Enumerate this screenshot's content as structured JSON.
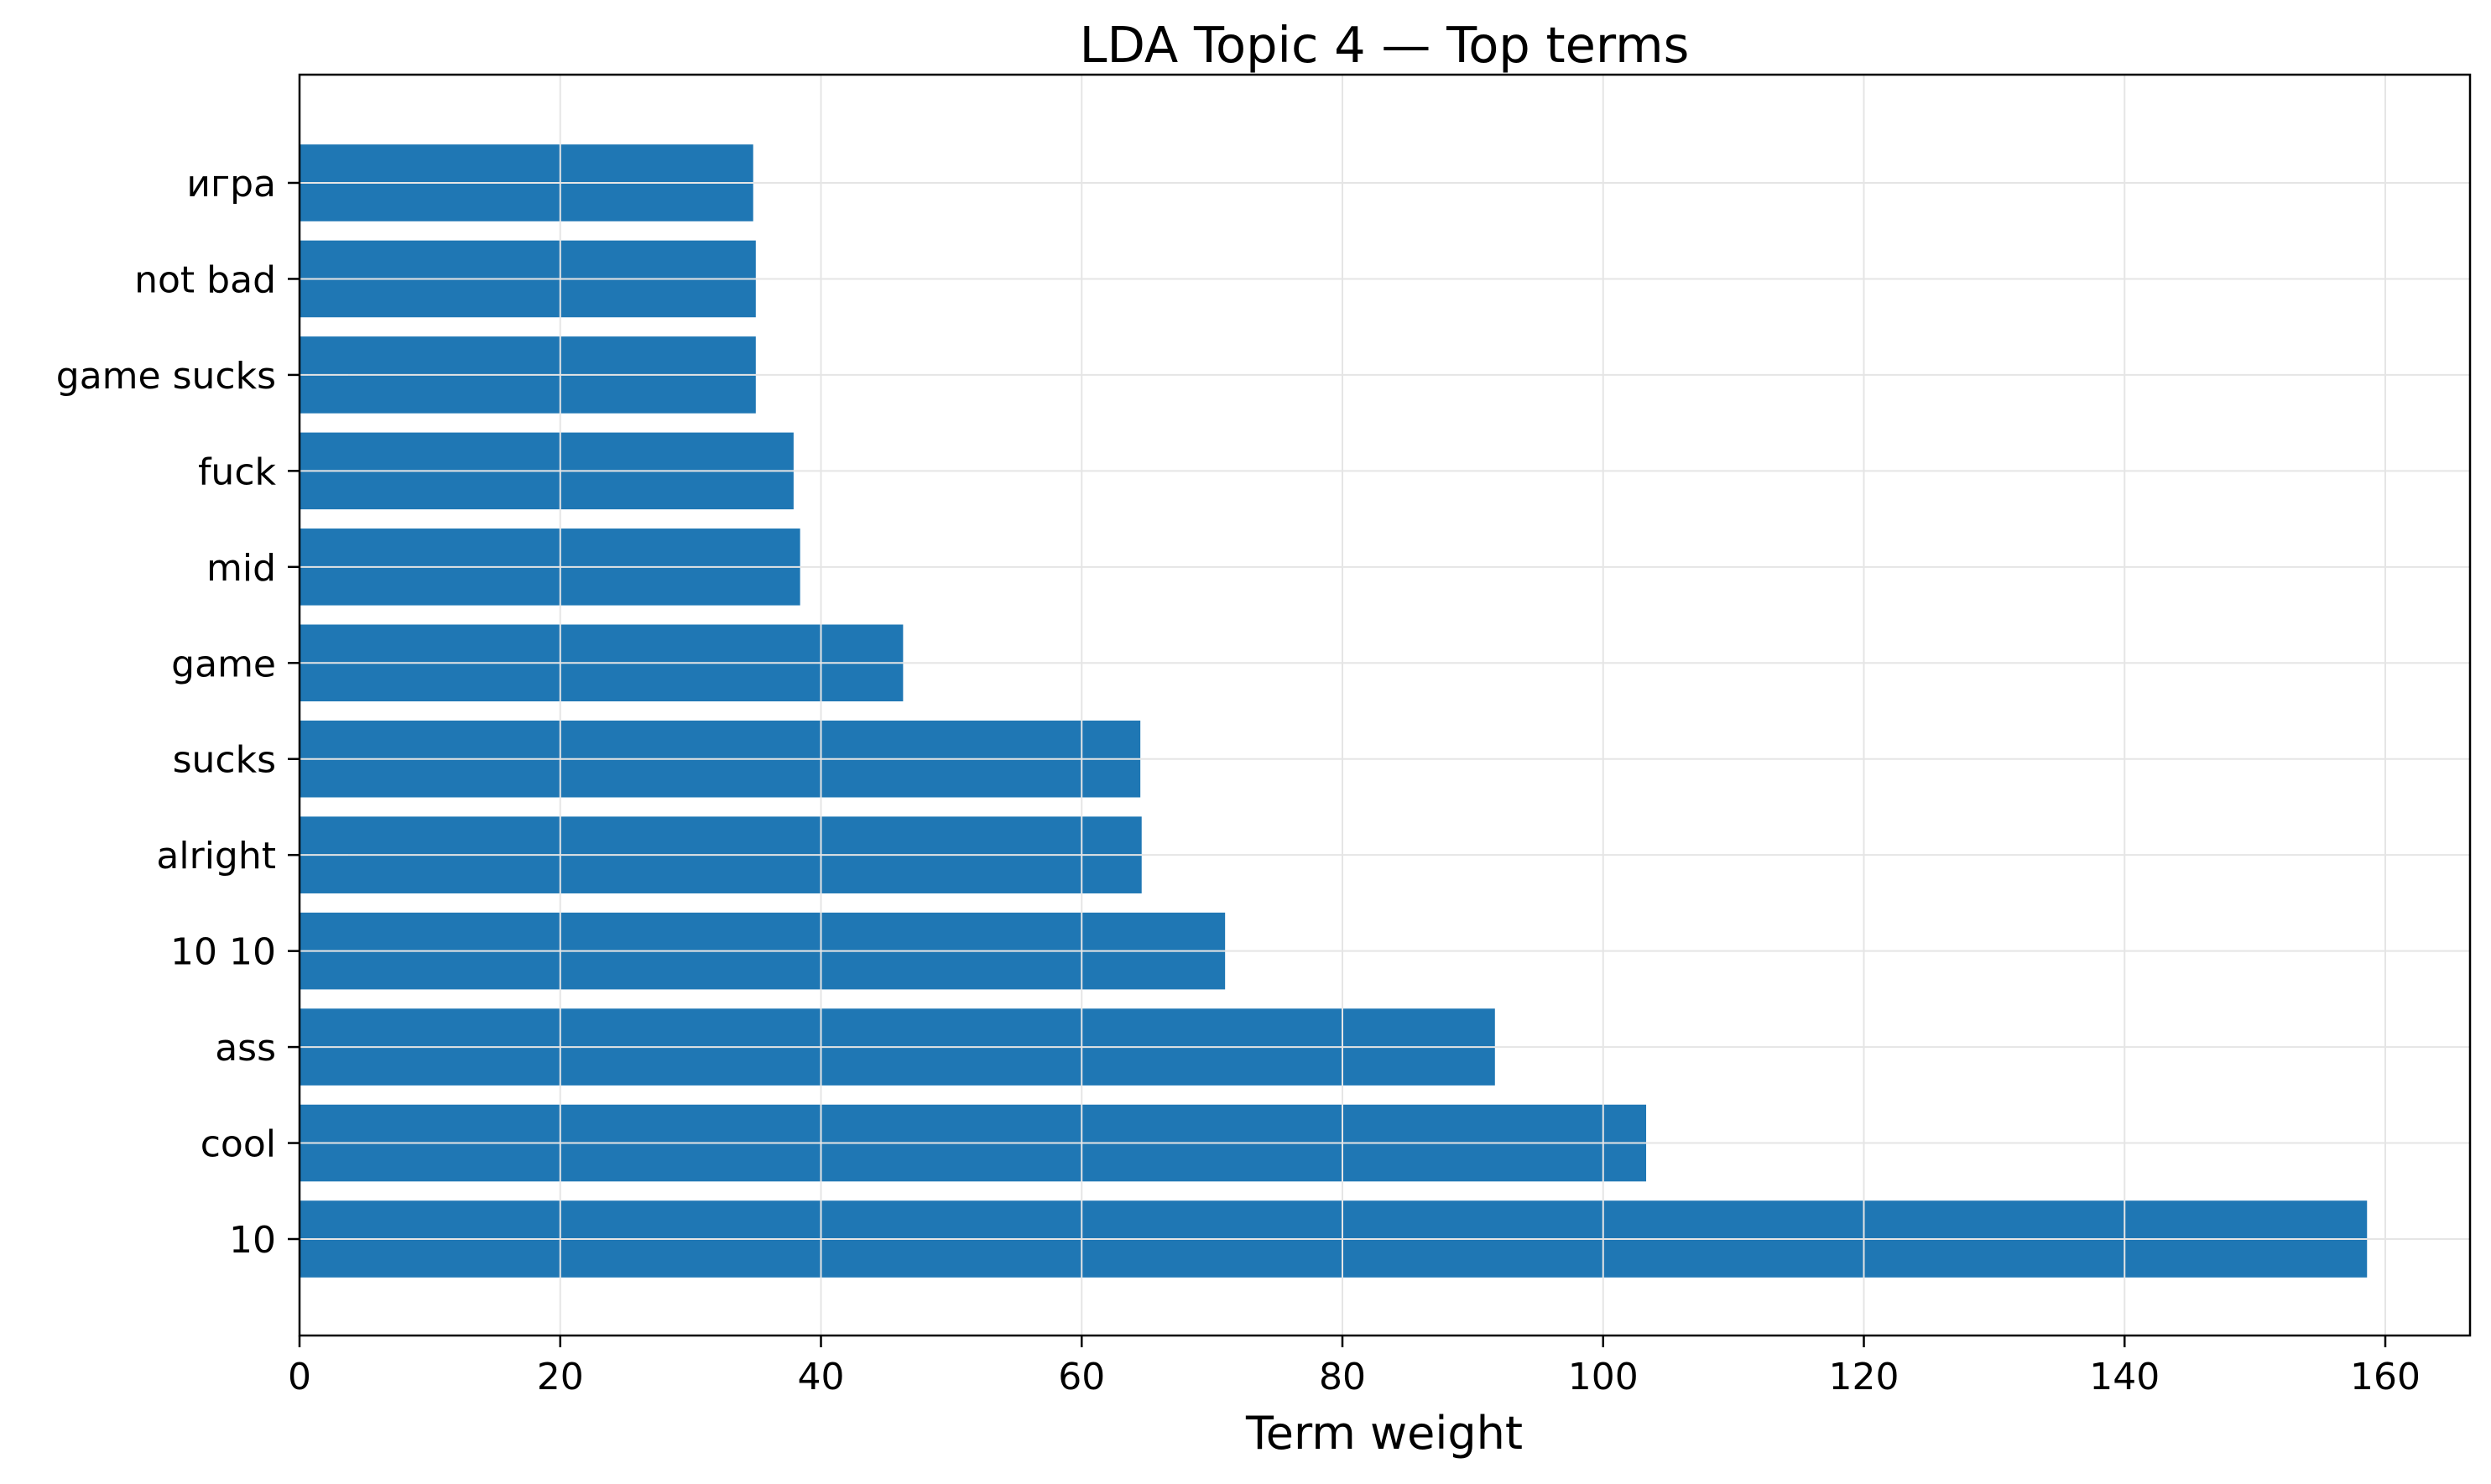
{
  "chart_data": {
    "type": "bar",
    "orientation": "horizontal",
    "title": "LDA Topic 4 — Top terms",
    "xlabel": "Term weight",
    "ylabel": "",
    "categories": [
      "10",
      "cool",
      "ass",
      "10 10",
      "alright",
      "sucks",
      "game",
      "mid",
      "fuck",
      "game sucks",
      "not bad",
      "игра"
    ],
    "values": [
      158.6,
      103.3,
      91.7,
      71.0,
      64.6,
      64.5,
      46.3,
      38.4,
      37.9,
      35.0,
      35.0,
      34.8
    ],
    "xlim": [
      0,
      166.5
    ],
    "xticks": [
      0,
      20,
      40,
      60,
      80,
      100,
      120,
      140,
      160
    ],
    "grid": true,
    "bar_color": "#1f77b4",
    "grid_color": "#e5e5e5"
  }
}
